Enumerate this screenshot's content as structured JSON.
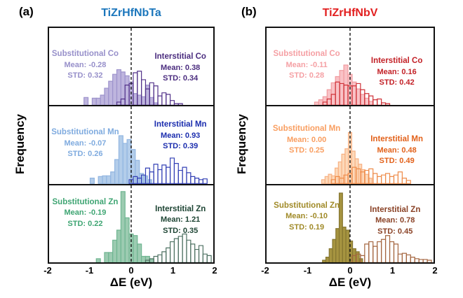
{
  "chart_data": {
    "type": "histogram",
    "x_range": [
      -2,
      2
    ],
    "x_tick_labels": [
      "-2",
      "-1",
      "0",
      "1",
      "2"
    ],
    "xlabel": "ΔE (eV)",
    "ylabel": "Frequency",
    "grid": false,
    "zero_line": {
      "x": 0,
      "style": "dashed",
      "color": "#111111"
    },
    "panels": [
      {
        "label": "(a)",
        "title": "TiZrHfNbTa",
        "title_color": "#1b76bc",
        "rows": [
          {
            "element": "Co",
            "series": [
              {
                "name": "Substitutional Co",
                "mean": -0.28,
                "std": 0.32,
                "mean_label": "Mean: -0.28",
                "std_label": "STD: 0.32",
                "style": "filled",
                "fill": "#beb5de",
                "edge": "#9d93cc",
                "text_color": "#9790ca",
                "x0": -1.15,
                "bin_width": 0.1,
                "heights": [
                  0.1,
                  0,
                  0.09,
                  0.09,
                  0.13,
                  0.22,
                  0.31,
                  0.4,
                  0.46,
                  0.43,
                  0.38,
                  0.3,
                  0.15,
                  0.13,
                  0.11,
                  0.26,
                  0.1,
                  0.03
                ]
              },
              {
                "name": "Interstitial Co",
                "mean": 0.38,
                "std": 0.34,
                "mean_label": "Mean: 0.38",
                "std_label": "STD: 0.34",
                "style": "outline",
                "fill": "none",
                "edge": "#53338a",
                "text_color": "#4b2d7f",
                "x0": -0.35,
                "bin_width": 0.1,
                "heights": [
                  0.04,
                  0.08,
                  0.26,
                  0.28,
                  0.42,
                  0.44,
                  0.33,
                  0.21,
                  0.29,
                  0.25,
                  0.12,
                  0.16,
                  0.14,
                  0.06,
                  0.02,
                  0.02
                ]
              }
            ]
          },
          {
            "element": "Mn",
            "series": [
              {
                "name": "Substitutional Mn",
                "mean": -0.07,
                "std": 0.26,
                "mean_label": "Mean: -0.07",
                "std_label": "STD: 0.26",
                "style": "filled",
                "fill": "#b3cdea",
                "edge": "#92b6e1",
                "text_color": "#7fabdf",
                "x0": -1.0,
                "bin_width": 0.1,
                "heights": [
                  0.07,
                  0,
                  0.09,
                  0.1,
                  0.1,
                  0.15,
                  0.31,
                  0.62,
                  0.52,
                  0.57,
                  0.44,
                  0.3,
                  0.13,
                  0.1,
                  0.05
                ]
              },
              {
                "name": "Interstitial Mn",
                "mean": 0.93,
                "std": 0.39,
                "mean_label": "Mean: 0.93",
                "std_label": "STD: 0.39",
                "style": "outline",
                "fill": "none",
                "edge": "#3340b5",
                "text_color": "#1b2dae",
                "x0": -0.05,
                "bin_width": 0.1,
                "heights": [
                  0.05,
                  0.09,
                  0.07,
                  0.11,
                  0.2,
                  0.15,
                  0.25,
                  0.18,
                  0.24,
                  0.21,
                  0.33,
                  0.26,
                  0.17,
                  0.21,
                  0.14,
                  0.09,
                  0.07,
                  0.05,
                  0.06
                ]
              }
            ]
          },
          {
            "element": "Zn",
            "series": [
              {
                "name": "Substitutional Zn",
                "mean": -0.19,
                "std": 0.22,
                "mean_label": "Mean: -0.19",
                "std_label": "STD: 0.22",
                "style": "filled",
                "fill": "#9ccbb1",
                "edge": "#6fb591",
                "text_color": "#3fa573",
                "x0": -0.85,
                "bin_width": 0.1,
                "heights": [
                  0.05,
                  0,
                  0.13,
                  0.13,
                  0.29,
                  0.42,
                  0.92,
                  0.58,
                  0.37,
                  0.35,
                  0.24,
                  0.08,
                  0.08,
                  0.04
                ]
              },
              {
                "name": "Interstitial Zn",
                "mean": 1.21,
                "std": 0.35,
                "mean_label": "Mean: 1.21",
                "std_label": "STD: 0.35",
                "style": "outline",
                "fill": "none",
                "edge": "#4f7263",
                "text_color": "#1e4534",
                "x0": 0.35,
                "bin_width": 0.1,
                "heights": [
                  0.03,
                  0.05,
                  0.08,
                  0.1,
                  0.14,
                  0.19,
                  0.27,
                  0.31,
                  0.34,
                  0.37,
                  0.29,
                  0.24,
                  0.17,
                  0.22,
                  0.11,
                  0.09
                ]
              }
            ]
          }
        ]
      },
      {
        "label": "(b)",
        "title": "TiZrHfNbV",
        "title_color": "#e21f1f",
        "rows": [
          {
            "element": "Co",
            "series": [
              {
                "name": "Substitutional Co",
                "mean": -0.11,
                "std": 0.28,
                "mean_label": "Mean: -0.11",
                "std_label": "STD: 0.28",
                "style": "filled",
                "fill": "#f9c2c6",
                "edge": "#f09a9e",
                "text_color": "#f5a0a4",
                "x0": -0.85,
                "bin_width": 0.1,
                "heights": [
                  0.04,
                  0.07,
                  0.11,
                  0.2,
                  0.29,
                  0.37,
                  0.45,
                  0.52,
                  0.4,
                  0.3,
                  0.21,
                  0.14,
                  0.09,
                  0.05
                ]
              },
              {
                "name": "Interstitial Co",
                "mean": 0.16,
                "std": 0.42,
                "mean_label": "Mean: 0.16",
                "std_label": "STD: 0.42",
                "style": "outline",
                "fill": "none",
                "edge": "#cf3238",
                "text_color": "#c32127",
                "x0": -0.65,
                "bin_width": 0.1,
                "heights": [
                  0.04,
                  0.08,
                  0.14,
                  0.3,
                  0.28,
                  0.26,
                  0.25,
                  0.25,
                  0.28,
                  0.2,
                  0.15,
                  0.12,
                  0.07,
                  0.08,
                  0.03,
                  0.02
                ]
              }
            ]
          },
          {
            "element": "Mn",
            "series": [
              {
                "name": "Substitutional Mn",
                "mean": 0.0,
                "std": 0.25,
                "mean_label": "Mean: 0.00",
                "std_label": "STD: 0.25",
                "style": "filled",
                "fill": "#fdd9ba",
                "edge": "#f7b183",
                "text_color": "#f99e60",
                "x0": -0.68,
                "bin_width": 0.08,
                "heights": [
                  0.05,
                  0.09,
                  0.12,
                  0.1,
                  0.2,
                  0.28,
                  0.38,
                  0.45,
                  0.66,
                  0.42,
                  0.32,
                  0.25,
                  0.18,
                  0.12,
                  0.07
                ]
              },
              {
                "name": "Interstitial Mn",
                "mean": 0.48,
                "std": 0.49,
                "mean_label": "Mean: 0.48",
                "std_label": "STD: 0.49",
                "style": "outline",
                "fill": "none",
                "edge": "#ee8c4a",
                "text_color": "#e2611a",
                "x0": -0.45,
                "bin_width": 0.1,
                "heights": [
                  0.05,
                  0.09,
                  0.07,
                  0.11,
                  0.13,
                  0.21,
                  0.19,
                  0.15,
                  0.17,
                  0.19,
                  0.13,
                  0.09,
                  0.11,
                  0.13,
                  0.09,
                  0.11,
                  0.15,
                  0.07,
                  0.04
                ]
              }
            ]
          },
          {
            "element": "Zn",
            "series": [
              {
                "name": "Substitutional Zn",
                "mean": -0.1,
                "std": 0.19,
                "mean_label": "Mean: -0.10",
                "std_label": "STD: 0.19",
                "style": "filled",
                "fill": "#a69440",
                "edge": "#857631",
                "text_color": "#a08a28",
                "x0": -0.66,
                "bin_width": 0.08,
                "heights": [
                  0.03,
                  0.07,
                  0.18,
                  0.3,
                  0.44,
                  0.9,
                  0.46,
                  0.42,
                  0.28,
                  0.18,
                  0.14,
                  0.05
                ]
              },
              {
                "name": "Interstitial Zn",
                "mean": 0.78,
                "std": 0.45,
                "mean_label": "Mean: 0.78",
                "std_label": "STD: 0.45",
                "style": "outline",
                "fill": "none",
                "edge": "#a4653f",
                "text_color": "#8a4226",
                "x0": 0.05,
                "bin_width": 0.1,
                "heights": [
                  0.09,
                  0.11,
                  0.09,
                  0.24,
                  0.27,
                  0.21,
                  0.27,
                  0.3,
                  0.35,
                  0.27,
                  0.24,
                  0.11,
                  0.12,
                  0.1,
                  0.07,
                  0.05,
                  0.04,
                  0.04,
                  0.03
                ]
              }
            ]
          }
        ]
      }
    ]
  }
}
